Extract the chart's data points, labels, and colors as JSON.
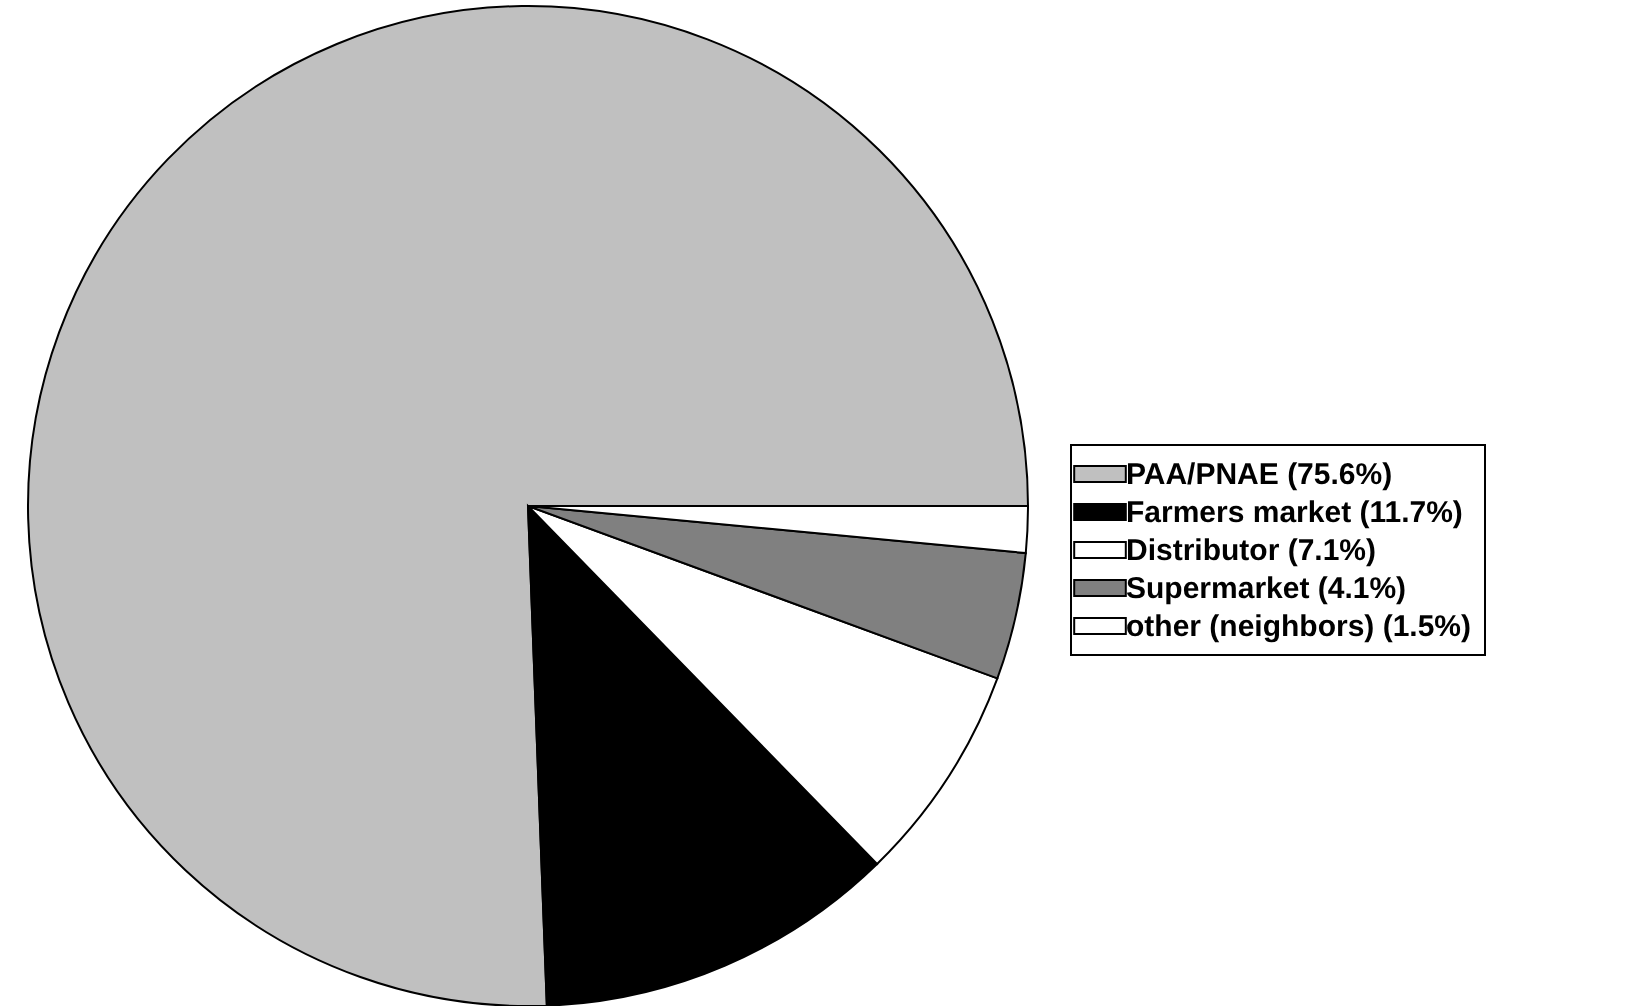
{
  "chart_data": {
    "type": "pie",
    "categories": [
      "PAA/PNAE (75.6%)",
      "Farmers market (11.7%)",
      "Distributor (7.1%)",
      "Supermarket (4.1%)",
      "other (neighbors) (1.5%)"
    ],
    "values": [
      75.6,
      11.7,
      7.1,
      4.1,
      1.5
    ],
    "colors": [
      "#c0c0c0",
      "#000000",
      "#ffffff",
      "#808080",
      "#ffffff"
    ],
    "legend": "right"
  }
}
